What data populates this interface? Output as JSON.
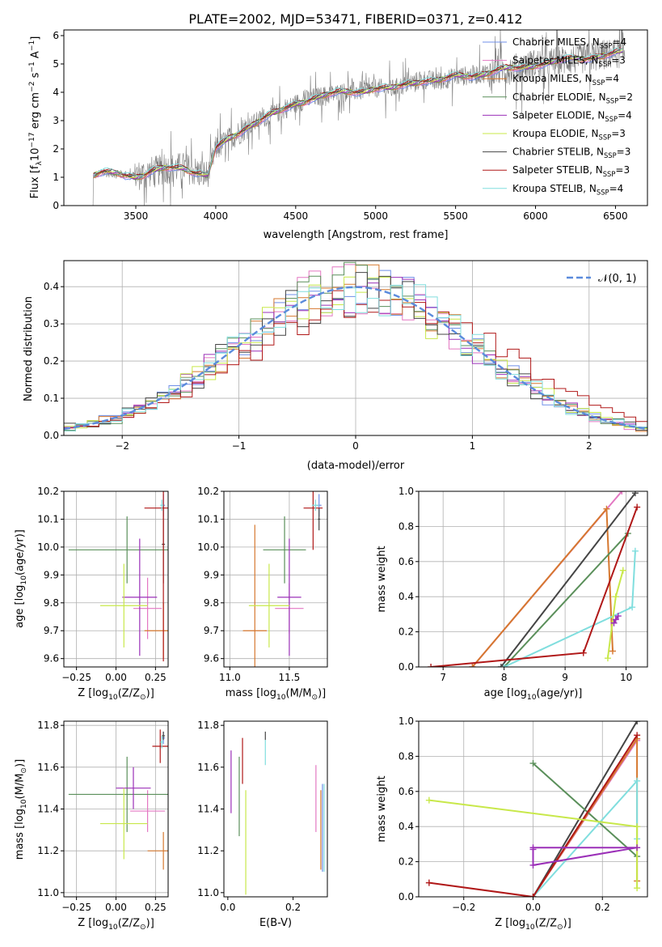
{
  "figure_title": "PLATE=2002, MJD=53471, FIBERID=0371, z=0.412",
  "colors": {
    "chabrier_miles": "#6f8fe8",
    "salpeter_miles": "#e377c2",
    "kroupa_miles": "#d6782f",
    "chabrier_elodie": "#5a8f5a",
    "salpeter_elodie": "#9b30b8",
    "kroupa_elodie": "#c8e84a",
    "chabrier_stelib": "#444444",
    "salpeter_stelib": "#b01818",
    "kroupa_stelib": "#80dede",
    "data": "#808080",
    "normal": "#5b8bdc"
  },
  "chart_data": [
    {
      "id": "spectrum",
      "type": "line",
      "xlabel": "wavelength [Angstrom, rest frame]",
      "ylabel_parts": [
        "Flux [f",
        "λ",
        "10",
        "−17",
        " erg cm",
        "−2",
        " s",
        "−1",
        " A",
        "−1",
        "]"
      ],
      "xlim": [
        3050,
        6700
      ],
      "ylim": [
        0,
        6.2
      ],
      "xticks": [
        3500,
        4000,
        4500,
        5000,
        5500,
        6000,
        6500
      ],
      "yticks": [
        0,
        1,
        2,
        3,
        4,
        5,
        6
      ],
      "grid": false,
      "legend_position": "top-right",
      "legend": [
        {
          "label": "Chabrier MILES, N",
          "sub": "SSP",
          "tail": "=4",
          "color": "#6f8fe8"
        },
        {
          "label": "Salpeter MILES, N",
          "sub": "SSP",
          "tail": "=3",
          "color": "#e377c2"
        },
        {
          "label": "Kroupa MILES, N",
          "sub": "SSP",
          "tail": "=4",
          "color": "#d6782f"
        },
        {
          "label": "Chabrier ELODIE, N",
          "sub": "SSP",
          "tail": "=2",
          "color": "#5a8f5a"
        },
        {
          "label": "Salpeter ELODIE, N",
          "sub": "SSP",
          "tail": "=4",
          "color": "#9b30b8"
        },
        {
          "label": "Kroupa ELODIE, N",
          "sub": "SSP",
          "tail": "=3",
          "color": "#c8e84a"
        },
        {
          "label": "Chabrier STELIB, N",
          "sub": "SSP",
          "tail": "=3",
          "color": "#444444"
        },
        {
          "label": "Salpeter STELIB, N",
          "sub": "SSP",
          "tail": "=3",
          "color": "#b01818"
        },
        {
          "label": "Kroupa STELIB, N",
          "sub": "SSP",
          "tail": "=4",
          "color": "#80dede"
        }
      ],
      "continuum": {
        "x": [
          3230,
          3300,
          3400,
          3500,
          3550,
          3600,
          3700,
          3800,
          3900,
          3950,
          4000,
          4100,
          4200,
          4300,
          4400,
          4500,
          4600,
          4700,
          4800,
          4900,
          5000,
          5100,
          5200,
          5300,
          5400,
          5500,
          5600,
          5700,
          5800,
          5900,
          6000,
          6100,
          6200,
          6300,
          6400,
          6550
        ],
        "y": [
          1.05,
          1.15,
          1.12,
          1.05,
          1.1,
          1.2,
          1.3,
          1.35,
          1.15,
          1.05,
          2.0,
          2.4,
          2.8,
          3.1,
          3.3,
          3.6,
          3.8,
          3.9,
          4.0,
          4.05,
          4.15,
          4.1,
          4.3,
          4.45,
          4.4,
          4.55,
          4.6,
          4.7,
          4.8,
          4.85,
          5.0,
          5.05,
          5.15,
          5.2,
          5.3,
          5.4
        ]
      }
    },
    {
      "id": "residuals",
      "type": "histogram",
      "xlabel": "(data-model)/error",
      "ylabel": "Normed distribution",
      "xlim": [
        -2.5,
        2.5
      ],
      "ylim": [
        0,
        0.47
      ],
      "xticks": [
        -2,
        -1,
        0,
        1,
        2
      ],
      "yticks": [
        0.0,
        0.1,
        0.2,
        0.3,
        0.4
      ],
      "grid": true,
      "legend_position": "top-right",
      "legend": [
        {
          "label": "𝒩(0, 1)",
          "color": "#5b8bdc"
        }
      ]
    },
    {
      "id": "age_vs_Z",
      "type": "scatter",
      "xlabel": "Z [log10(Z/Z⊙)]",
      "ylabel": "age  [log10(age/yr)]",
      "xlim": [
        -0.33,
        0.33
      ],
      "ylim": [
        9.57,
        10.2
      ],
      "xticks": [
        -0.25,
        0.0,
        0.25
      ],
      "yticks": [
        9.6,
        9.7,
        9.8,
        9.9,
        10.0,
        10.1,
        10.2
      ],
      "grid": true,
      "points": [
        {
          "x": 0.3,
          "y": 10.15,
          "xerr": 0.01,
          "yerr": 0.04,
          "color": "#6f8fe8"
        },
        {
          "x": 0.2,
          "y": 9.78,
          "xerr": 0.09,
          "yerr": 0.11,
          "color": "#e377c2"
        },
        {
          "x": 0.3,
          "y": 9.7,
          "xerr": 0.12,
          "yerr": 0.1,
          "color": "#d6782f"
        },
        {
          "x": 0.07,
          "y": 9.99,
          "xerr": 0.37,
          "yerr": 0.12,
          "color": "#5a8f5a"
        },
        {
          "x": 0.15,
          "y": 9.82,
          "xerr": 0.11,
          "yerr": 0.21,
          "color": "#9b30b8"
        },
        {
          "x": 0.05,
          "y": 9.79,
          "xerr": 0.15,
          "yerr": 0.15,
          "color": "#c8e84a"
        },
        {
          "x": 0.3,
          "y": 10.01,
          "xerr": 0.01,
          "yerr": 0.14,
          "color": "#444444"
        },
        {
          "x": 0.3,
          "y": 10.14,
          "xerr": 0.12,
          "yerr": 0.55,
          "color": "#b01818"
        },
        {
          "x": 0.29,
          "y": 10.15,
          "xerr": 0.01,
          "yerr": 0.02,
          "color": "#80dede"
        }
      ]
    },
    {
      "id": "age_vs_mass",
      "type": "scatter",
      "xlabel": "mass [log10(M/M⊙)]",
      "ylabel": "",
      "xlim": [
        10.95,
        11.82
      ],
      "ylim": [
        9.57,
        10.2
      ],
      "xticks": [
        11.0,
        11.5
      ],
      "yticks": [
        9.6,
        9.7,
        9.8,
        9.9,
        10.0,
        10.1,
        10.2
      ],
      "grid": true,
      "points": [
        {
          "x": 11.75,
          "y": 10.15,
          "xerr": 0.02,
          "yerr": 0.04,
          "color": "#6f8fe8"
        },
        {
          "x": 11.5,
          "y": 9.78,
          "xerr": 0.12,
          "yerr": 0.09,
          "color": "#e377c2"
        },
        {
          "x": 11.21,
          "y": 9.7,
          "xerr": 0.1,
          "yerr": 0.38,
          "color": "#d6782f"
        },
        {
          "x": 11.46,
          "y": 9.99,
          "xerr": 0.18,
          "yerr": 0.12,
          "color": "#5a8f5a"
        },
        {
          "x": 11.5,
          "y": 9.82,
          "xerr": 0.1,
          "yerr": 0.21,
          "color": "#9b30b8"
        },
        {
          "x": 11.33,
          "y": 9.79,
          "xerr": 0.17,
          "yerr": 0.15,
          "color": "#c8e84a"
        },
        {
          "x": 11.75,
          "y": 10.1,
          "xerr": 0.01,
          "yerr": 0.04,
          "color": "#444444"
        },
        {
          "x": 11.7,
          "y": 10.14,
          "xerr": 0.08,
          "yerr": 0.15,
          "color": "#b01818"
        },
        {
          "x": 11.72,
          "y": 10.15,
          "xerr": 0.03,
          "yerr": 0.02,
          "color": "#80dede"
        }
      ]
    },
    {
      "id": "weight_vs_age",
      "type": "line",
      "xlabel": "age  [log10(age/yr)]",
      "ylabel": "mass weight",
      "xlim": [
        6.6,
        10.35
      ],
      "ylim": [
        0,
        1
      ],
      "xticks": [
        7,
        8,
        9,
        10
      ],
      "yticks": [
        0.0,
        0.2,
        0.4,
        0.6,
        0.8,
        1.0
      ],
      "grid": true,
      "series": [
        {
          "color": "#e377c2",
          "x": [
            7.48,
            9.93
          ],
          "y": [
            0.0,
            1.0
          ]
        },
        {
          "color": "#d6782f",
          "x": [
            7.48,
            9.68,
            9.78
          ],
          "y": [
            0.0,
            0.9,
            0.09
          ]
        },
        {
          "color": "#444444",
          "x": [
            7.95,
            10.15
          ],
          "y": [
            0.0,
            0.99
          ]
        },
        {
          "color": "#5a8f5a",
          "x": [
            8.0,
            10.03
          ],
          "y": [
            0.0,
            0.76
          ]
        },
        {
          "color": "#80dede",
          "x": [
            8.0,
            10.1,
            10.15
          ],
          "y": [
            0.0,
            0.34,
            0.66
          ]
        },
        {
          "color": "#b01818",
          "x": [
            6.8,
            9.3,
            10.18
          ],
          "y": [
            0.0,
            0.08,
            0.91
          ]
        },
        {
          "color": "#c8e84a",
          "x": [
            9.7,
            9.83,
            9.95
          ],
          "y": [
            0.05,
            0.4,
            0.55
          ]
        },
        {
          "color": "#9b30b8",
          "x": [
            9.8,
            9.83,
            9.87
          ],
          "y": [
            0.25,
            0.27,
            0.29
          ]
        }
      ]
    },
    {
      "id": "mass_vs_Z",
      "type": "scatter",
      "xlabel": "Z [log10(Z/Z⊙)]",
      "ylabel": "mass [log10(M/M⊙)]",
      "xlim": [
        -0.33,
        0.33
      ],
      "ylim": [
        10.98,
        11.82
      ],
      "xticks": [
        -0.25,
        0.0,
        0.25
      ],
      "yticks": [
        11.0,
        11.2,
        11.4,
        11.6,
        11.8
      ],
      "grid": true,
      "points": [
        {
          "x": 0.3,
          "y": 11.74,
          "xerr": 0.01,
          "yerr": 0.03,
          "color": "#6f8fe8"
        },
        {
          "x": 0.2,
          "y": 11.39,
          "xerr": 0.11,
          "yerr": 0.1,
          "color": "#e377c2"
        },
        {
          "x": 0.3,
          "y": 11.2,
          "xerr": 0.1,
          "yerr": 0.09,
          "color": "#d6782f"
        },
        {
          "x": 0.07,
          "y": 11.47,
          "xerr": 0.37,
          "yerr": 0.18,
          "color": "#5a8f5a"
        },
        {
          "x": 0.11,
          "y": 11.5,
          "xerr": 0.11,
          "yerr": 0.1,
          "color": "#9b30b8"
        },
        {
          "x": 0.05,
          "y": 11.33,
          "xerr": 0.15,
          "yerr": 0.17,
          "color": "#c8e84a"
        },
        {
          "x": 0.3,
          "y": 11.75,
          "xerr": 0.01,
          "yerr": 0.02,
          "color": "#444444"
        },
        {
          "x": 0.28,
          "y": 11.7,
          "xerr": 0.05,
          "yerr": 0.08,
          "color": "#b01818"
        },
        {
          "x": 0.29,
          "y": 11.72,
          "xerr": 0.01,
          "yerr": 0.03,
          "color": "#80dede"
        }
      ]
    },
    {
      "id": "mass_vs_ebv",
      "type": "scatter",
      "xlabel": "E(B-V)",
      "ylabel": "",
      "xlim": [
        -0.012,
        0.305
      ],
      "ylim": [
        10.98,
        11.82
      ],
      "xticks": [
        0.0,
        0.2
      ],
      "yticks": [
        11.0,
        11.2,
        11.4,
        11.6,
        11.8
      ],
      "grid": false,
      "points": [
        {
          "x": 0.29,
          "y": 11.31,
          "yerr": 0.21,
          "color": "#6f8fe8"
        },
        {
          "x": 0.27,
          "y": 11.45,
          "yerr": 0.16,
          "color": "#e377c2"
        },
        {
          "x": 0.285,
          "y": 11.3,
          "yerr": 0.19,
          "color": "#d6782f"
        },
        {
          "x": 0.035,
          "y": 11.46,
          "yerr": 0.19,
          "color": "#5a8f5a"
        },
        {
          "x": 0.01,
          "y": 11.53,
          "yerr": 0.15,
          "color": "#9b30b8"
        },
        {
          "x": 0.055,
          "y": 11.24,
          "yerr": 0.25,
          "color": "#c8e84a"
        },
        {
          "x": 0.115,
          "y": 11.75,
          "yerr": 0.02,
          "color": "#444444"
        },
        {
          "x": 0.045,
          "y": 11.63,
          "yerr": 0.11,
          "color": "#b01818"
        },
        {
          "x": 0.115,
          "y": 11.67,
          "yerr": 0.06,
          "color": "#80dede"
        },
        {
          "x": 0.295,
          "y": 11.31,
          "yerr": 0.21,
          "color": "#80dede"
        }
      ]
    },
    {
      "id": "weight_vs_Z",
      "type": "line",
      "xlabel": "Z [log10(Z/Z⊙)]",
      "ylabel": "mass weight",
      "xlim": [
        -0.33,
        0.33
      ],
      "ylim": [
        0,
        1
      ],
      "xticks": [
        -0.2,
        0.0,
        0.2
      ],
      "yticks": [
        0.0,
        0.2,
        0.4,
        0.6,
        0.8,
        1.0
      ],
      "grid": true,
      "series": [
        {
          "color": "#e377c2",
          "x": [
            0.0,
            0.3
          ],
          "y": [
            0.0,
            0.89
          ]
        },
        {
          "color": "#d6782f",
          "x": [
            0.0,
            0.3,
            0.3
          ],
          "y": [
            0.0,
            0.9,
            0.09
          ]
        },
        {
          "color": "#444444",
          "x": [
            0.0,
            0.3
          ],
          "y": [
            0.0,
            1.0
          ]
        },
        {
          "color": "#5a8f5a",
          "x": [
            0.0,
            0.3
          ],
          "y": [
            0.76,
            0.23
          ]
        },
        {
          "color": "#80dede",
          "x": [
            0.0,
            0.3,
            0.3
          ],
          "y": [
            0.0,
            0.66,
            0.33
          ]
        },
        {
          "color": "#b01818",
          "x": [
            -0.3,
            0.0,
            0.3
          ],
          "y": [
            0.08,
            0.0,
            0.92
          ]
        },
        {
          "color": "#c8e84a",
          "x": [
            -0.3,
            0.3,
            0.3
          ],
          "y": [
            0.55,
            0.4,
            0.05
          ]
        },
        {
          "color": "#9b30b8",
          "x": [
            0.0,
            0.3,
            0.0,
            0.0
          ],
          "y": [
            0.28,
            0.28,
            0.18,
            0.27
          ]
        }
      ]
    }
  ]
}
